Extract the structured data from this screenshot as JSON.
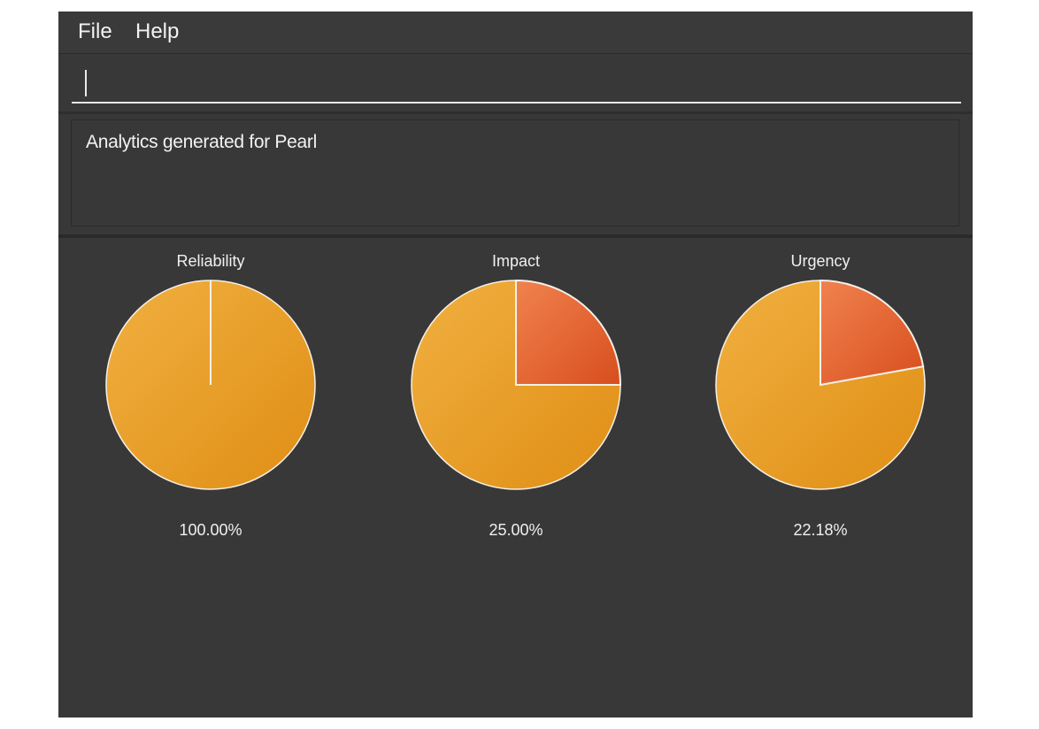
{
  "menu": {
    "file_label": "File",
    "help_label": "Help"
  },
  "command": {
    "value": "",
    "placeholder": ""
  },
  "result": {
    "text": "Analytics generated for Pearl"
  },
  "colors": {
    "background": "#383838",
    "pie_main": "#e6992a",
    "pie_slice": "#e0602e",
    "outline": "#f5f0e8"
  },
  "chart_data": [
    {
      "type": "pie",
      "title": "Reliability",
      "label": "100.00%",
      "slice_fraction": 1.0
    },
    {
      "type": "pie",
      "title": "Impact",
      "label": "25.00%",
      "slice_fraction": 0.25
    },
    {
      "type": "pie",
      "title": "Urgency",
      "label": "22.18%",
      "slice_fraction": 0.2218
    }
  ]
}
